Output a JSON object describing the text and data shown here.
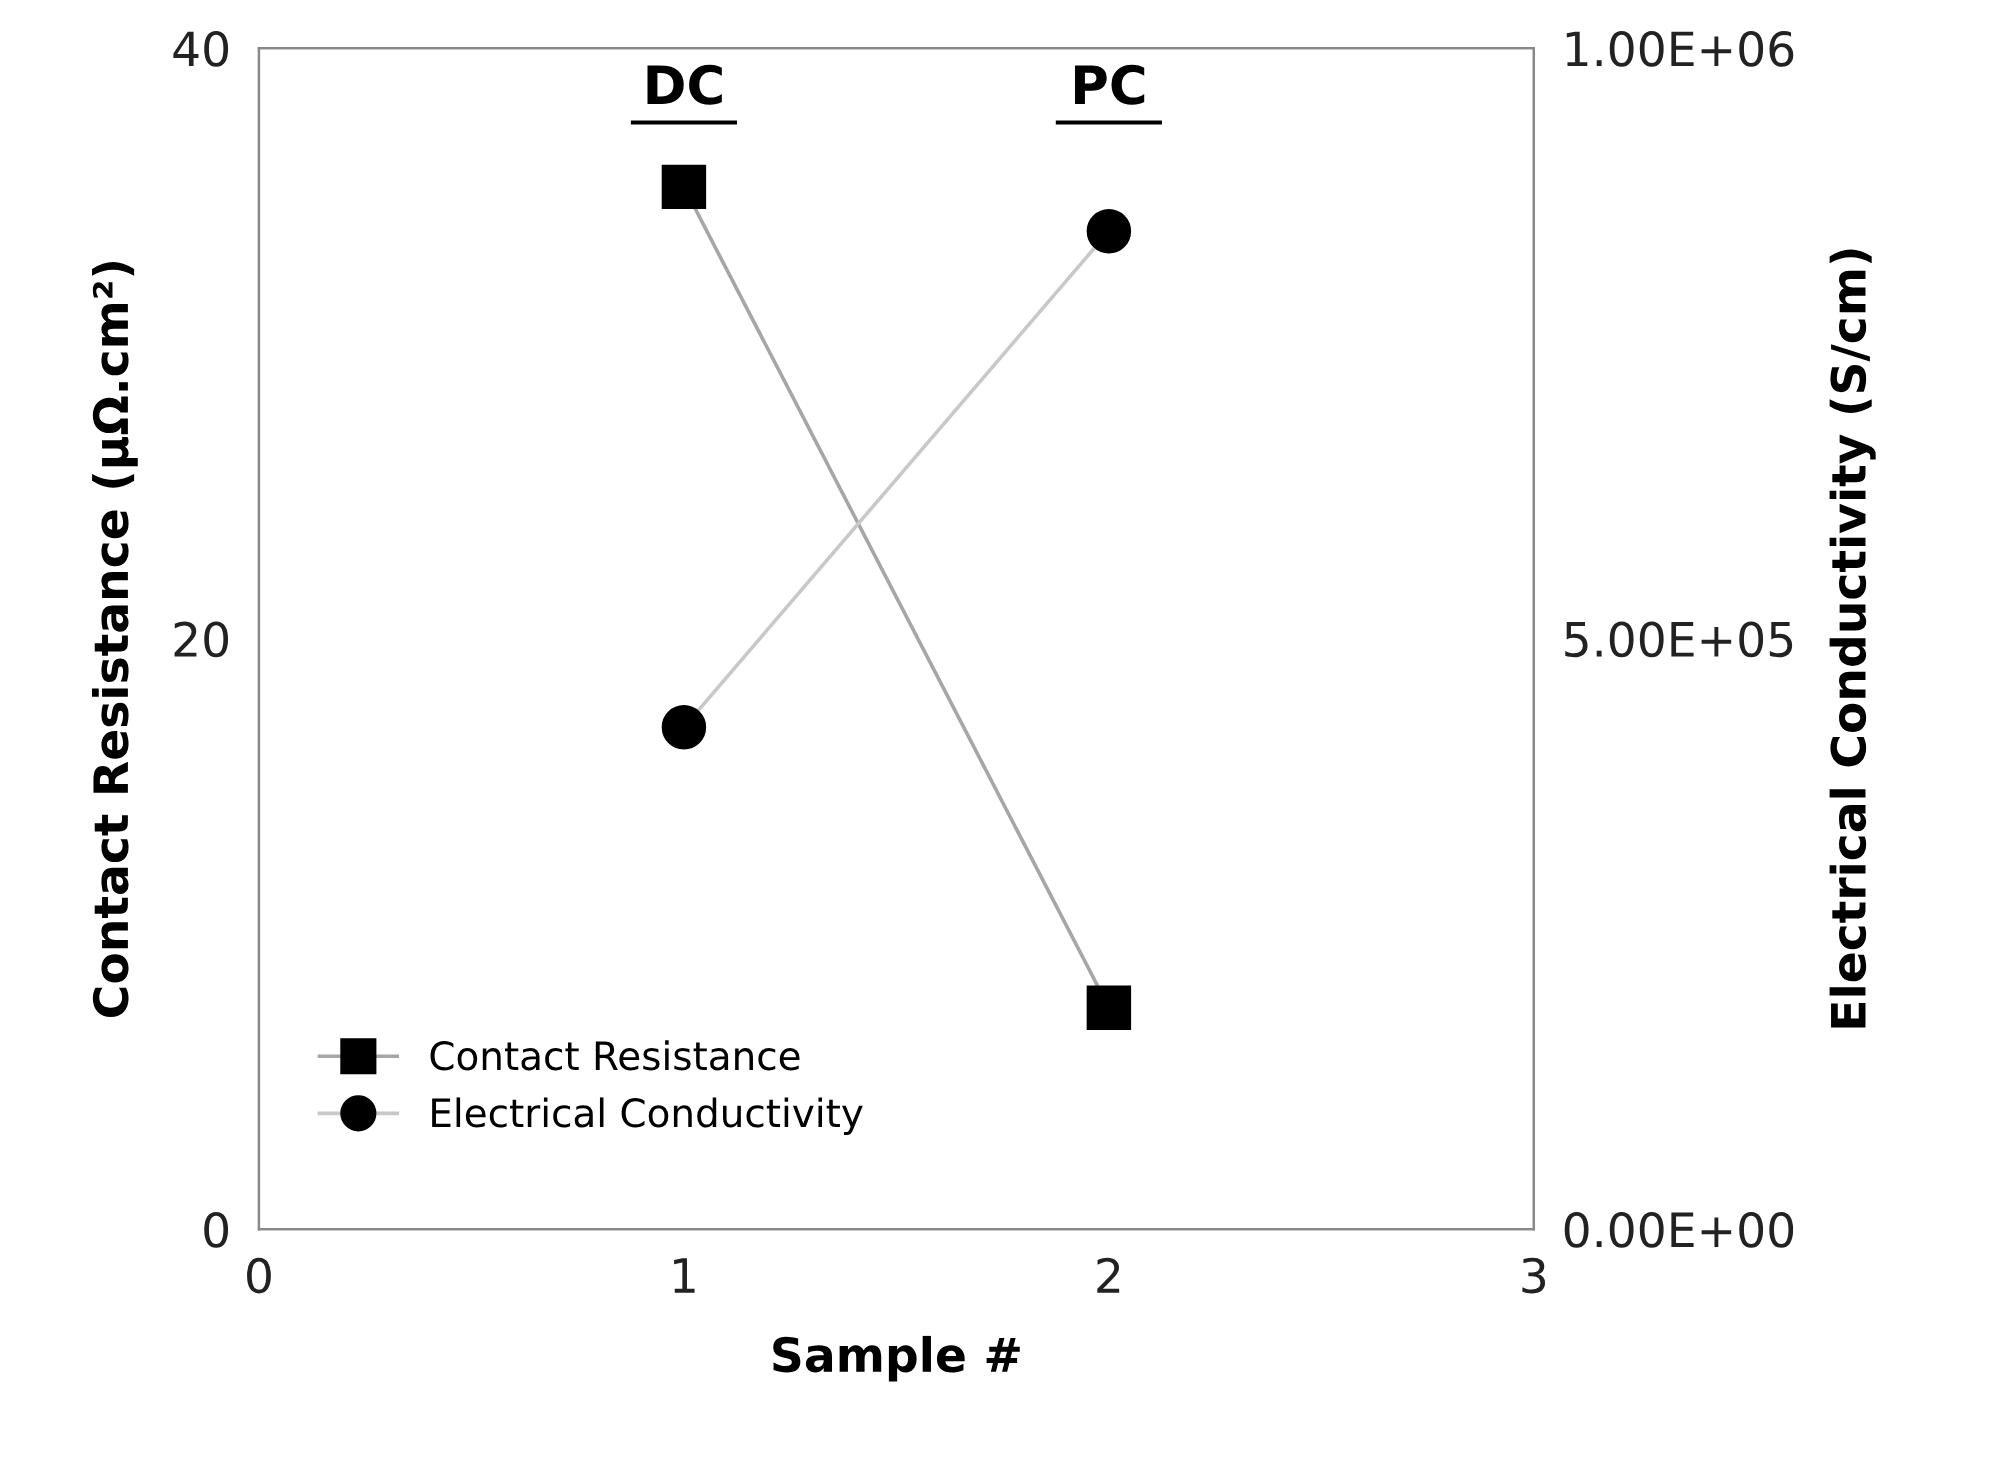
{
  "chart_data": {
    "type": "line",
    "xlabel": "Sample #",
    "ylabel": "Contact Resistance (μΩ.cm²)",
    "y2label": "Electrical Conductivity (S/cm)",
    "x": [
      1,
      2
    ],
    "series": [
      {
        "name": "Contact Resistance",
        "color": "#000000",
        "values": [
          35.3,
          7.5
        ],
        "marker": "square"
      },
      {
        "name": "Electrical Conductivity",
        "color": "#000000",
        "values": [
          425000,
          845000
        ],
        "marker": "circle",
        "axis": "y2"
      }
    ],
    "xlim": [
      0,
      3
    ],
    "xticks": [
      0,
      1,
      2,
      3
    ],
    "ylim": [
      0,
      40
    ],
    "yticks": [
      0,
      20,
      40
    ],
    "y2lim": [
      0,
      1000000
    ],
    "y2ticks": [
      {
        "value": 0,
        "label": "0.00E+00"
      },
      {
        "value": 500000,
        "label": "5.00E+05"
      },
      {
        "value": 1000000,
        "label": "1.00E+06"
      }
    ],
    "annotations": [
      "DC",
      "PC"
    ],
    "grid": false,
    "legend": "bottom left",
    "line_style": "solid"
  }
}
